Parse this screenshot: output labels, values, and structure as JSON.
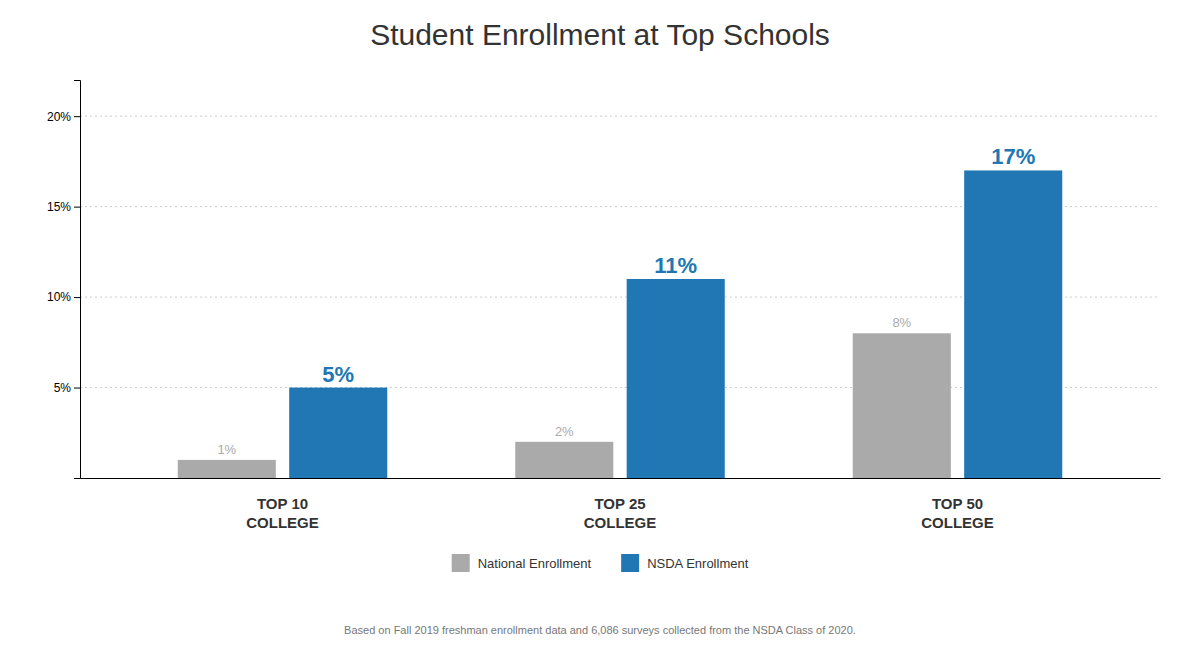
{
  "chart_data": {
    "type": "bar",
    "title": "Student Enrollment at Top Schools",
    "categories": [
      "TOP 10\nCOLLEGE",
      "TOP 25\nCOLLEGE",
      "TOP 50\nCOLLEGE"
    ],
    "series": [
      {
        "name": "National Enrollment",
        "color": "#AAAAAA",
        "values": [
          1,
          2,
          8
        ],
        "value_labels": [
          "1%",
          "2%",
          "8%"
        ]
      },
      {
        "name": "NSDA Enrollment",
        "color": "#2077B4",
        "values": [
          5,
          11,
          17
        ],
        "value_labels": [
          "5%",
          "11%",
          "17%"
        ]
      }
    ],
    "ylim": [
      0,
      22
    ],
    "yticks": [
      {
        "value": 5,
        "label": "5%"
      },
      {
        "value": 10,
        "label": "10%"
      },
      {
        "value": 15,
        "label": "15%"
      },
      {
        "value": 20,
        "label": "20%"
      }
    ],
    "grid": true,
    "legend": "bottom",
    "data_labels": true,
    "annotations": [
      "Based on  Fall 2019 freshman enrollment data and 6,086 surveys collected from the NSDA Class of 2020."
    ]
  }
}
